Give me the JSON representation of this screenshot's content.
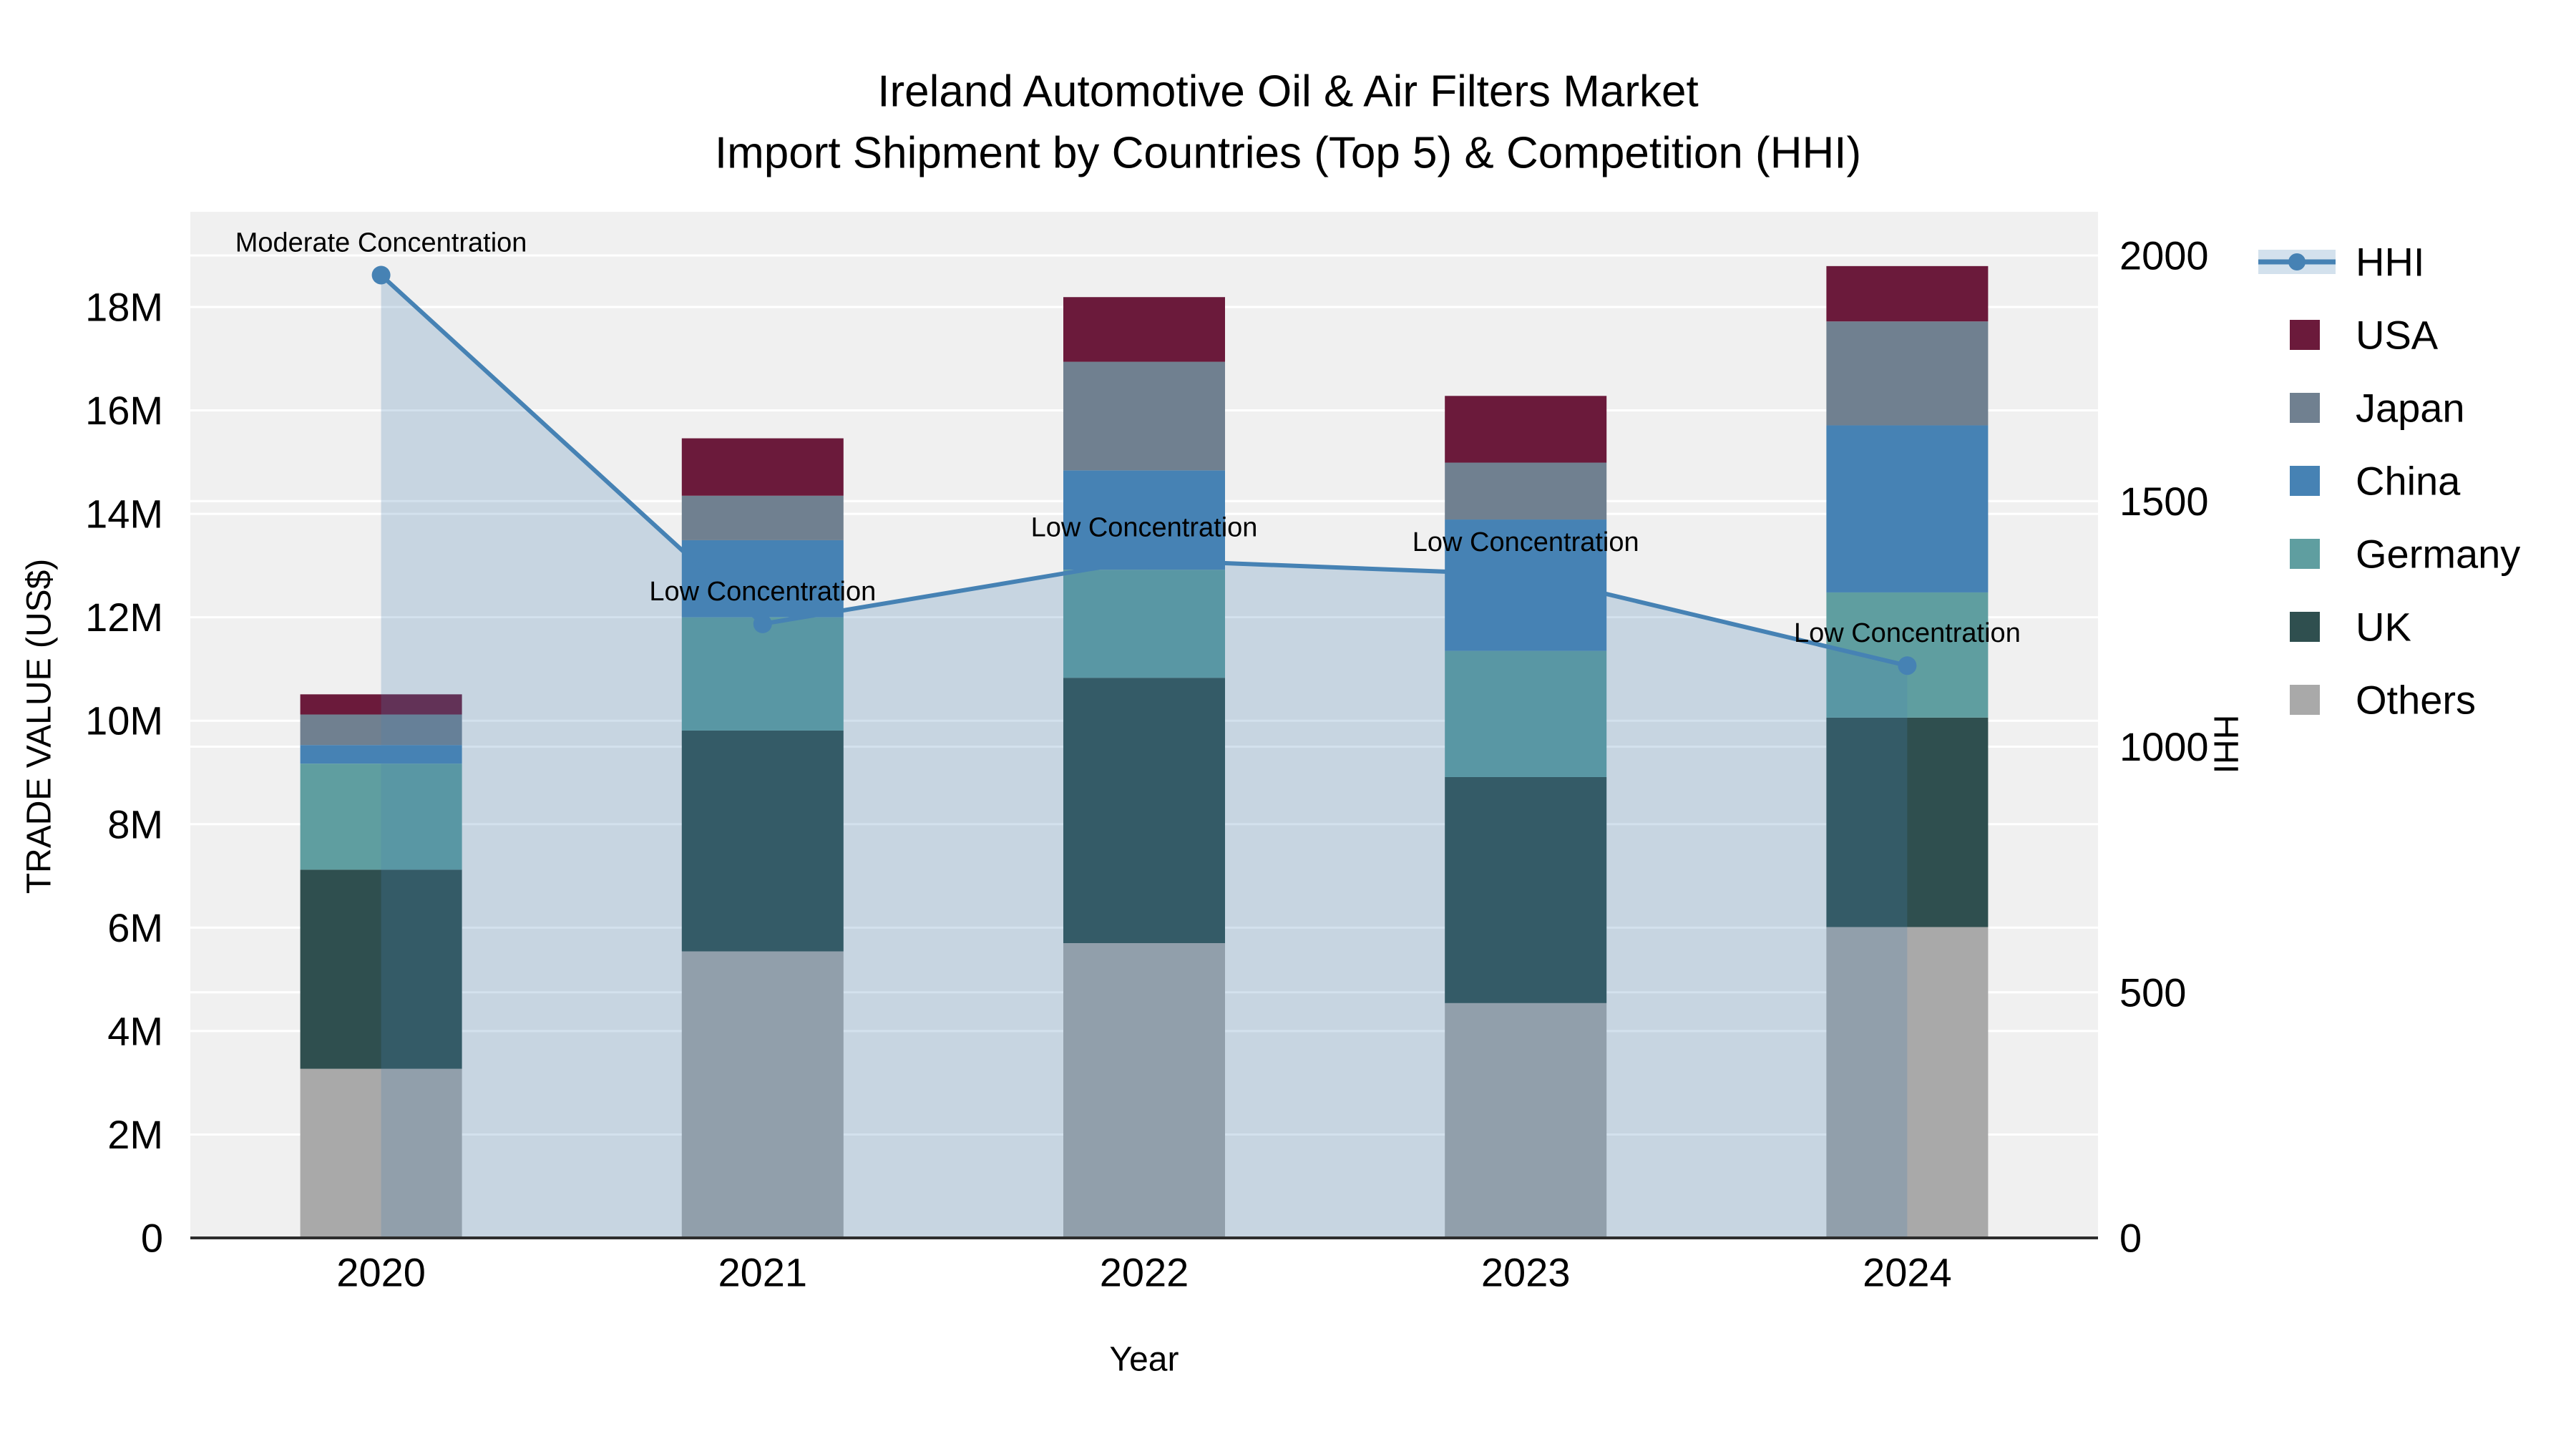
{
  "chart_data": {
    "type": "bar",
    "stacked": true,
    "title_line1": "Ireland Automotive Oil & Air Filters Market",
    "title_line2": "Import Shipment by Countries (Top 5) & Competition (HHI)",
    "xlabel": "Year",
    "ylabel": "TRADE VALUE (US$)",
    "y2label": "HHI",
    "categories": [
      "2020",
      "2021",
      "2022",
      "2023",
      "2024"
    ],
    "value_unit": "millions USD",
    "series": [
      {
        "name": "Others",
        "color": "#A9A9A9",
        "values": [
          3.27,
          5.54,
          5.7,
          4.54,
          6.01
        ]
      },
      {
        "name": "UK",
        "color": "#2F4F4F",
        "values": [
          3.85,
          4.27,
          5.13,
          4.37,
          4.05
        ]
      },
      {
        "name": "Germany",
        "color": "#5F9EA0",
        "values": [
          2.05,
          2.19,
          2.09,
          2.44,
          2.42
        ]
      },
      {
        "name": "China",
        "color": "#4682B4",
        "values": [
          0.36,
          1.49,
          1.92,
          2.54,
          3.23
        ]
      },
      {
        "name": "Japan",
        "color": "#708090",
        "values": [
          0.59,
          0.86,
          2.1,
          1.1,
          2.01
        ]
      },
      {
        "name": "USA",
        "color": "#6B1A3B",
        "values": [
          0.39,
          1.11,
          1.25,
          1.29,
          1.07
        ]
      }
    ],
    "bar_totals_millions": [
      10.51,
      15.46,
      18.19,
      16.28,
      18.79
    ],
    "line": {
      "name": "HHI",
      "color": "#4682B4",
      "fill_color": "rgba(70,130,180,0.24)",
      "values": [
        1960,
        1250,
        1380,
        1350,
        1165
      ]
    },
    "annotations": [
      "Moderate Concentration",
      "Low Concentration",
      "Low Concentration",
      "Low Concentration",
      "Low Concentration"
    ],
    "yticks": [
      {
        "label": "0",
        "value": 0
      },
      {
        "label": "2M",
        "value": 2
      },
      {
        "label": "4M",
        "value": 4
      },
      {
        "label": "6M",
        "value": 6
      },
      {
        "label": "8M",
        "value": 8
      },
      {
        "label": "10M",
        "value": 10
      },
      {
        "label": "12M",
        "value": 12
      },
      {
        "label": "14M",
        "value": 14
      },
      {
        "label": "16M",
        "value": 16
      },
      {
        "label": "18M",
        "value": 18
      }
    ],
    "y2ticks": [
      {
        "label": "0",
        "value": 0
      },
      {
        "label": "500",
        "value": 500
      },
      {
        "label": "1000",
        "value": 1000
      },
      {
        "label": "1500",
        "value": 1500
      },
      {
        "label": "2000",
        "value": 2000
      }
    ],
    "ylim_millions": [
      0,
      19.84
    ],
    "y2lim": [
      0,
      2089
    ],
    "legend_order": [
      "HHI",
      "USA",
      "Japan",
      "China",
      "Germany",
      "UK",
      "Others"
    ],
    "legend_position": "right",
    "grid": true,
    "colors": {
      "plot_bg": "#F0F0F0",
      "grid": "#FFFFFF",
      "axis_line": "#2D2D2D",
      "text": "#000000"
    }
  }
}
